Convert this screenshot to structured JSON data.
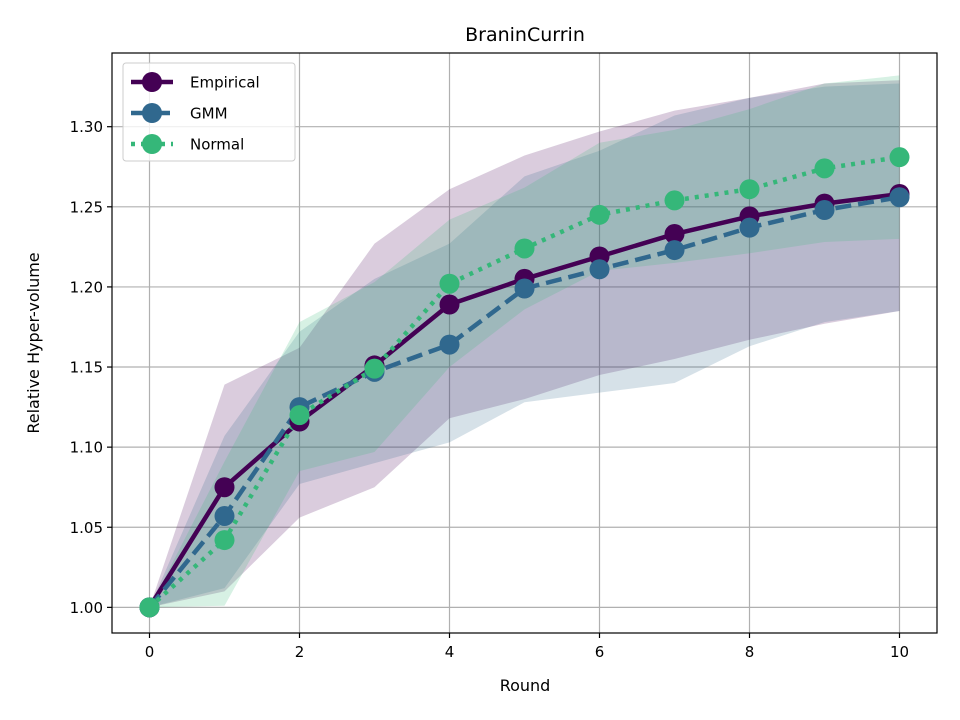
{
  "chart_data": {
    "type": "line",
    "title": "BraninCurrin",
    "xlabel": "Round",
    "ylabel": "Relative Hyper-volume",
    "xlim": [
      -0.5,
      10.5
    ],
    "ylim": [
      0.984,
      1.346
    ],
    "xticks": [
      0,
      2,
      4,
      6,
      8,
      10
    ],
    "yticks": [
      1.0,
      1.05,
      1.1,
      1.15,
      1.2,
      1.25,
      1.3
    ],
    "x": [
      0,
      1,
      2,
      3,
      4,
      5,
      6,
      7,
      8,
      9,
      10
    ],
    "grid": true,
    "legend_position": "top-left",
    "series": [
      {
        "name": "Empirical",
        "color": "#440154",
        "line_style": "solid",
        "values": [
          1.0,
          1.075,
          1.116,
          1.151,
          1.189,
          1.205,
          1.219,
          1.233,
          1.244,
          1.252,
          1.258
        ],
        "band_upper": [
          1.0,
          1.139,
          1.162,
          1.227,
          1.261,
          1.282,
          1.297,
          1.31,
          1.318,
          1.327,
          1.329
        ],
        "band_lower": [
          1.0,
          1.01,
          1.056,
          1.075,
          1.118,
          1.13,
          1.145,
          1.155,
          1.167,
          1.177,
          1.185
        ]
      },
      {
        "name": "GMM",
        "color": "#30688e",
        "line_style": "dashed",
        "values": [
          1.0,
          1.057,
          1.125,
          1.147,
          1.164,
          1.199,
          1.211,
          1.223,
          1.237,
          1.248,
          1.256
        ],
        "band_upper": [
          1.0,
          1.107,
          1.172,
          1.205,
          1.227,
          1.269,
          1.285,
          1.307,
          1.318,
          1.325,
          1.327
        ],
        "band_lower": [
          1.0,
          1.012,
          1.077,
          1.09,
          1.103,
          1.128,
          1.134,
          1.14,
          1.163,
          1.178,
          1.185
        ]
      },
      {
        "name": "Normal",
        "color": "#35b779",
        "line_style": "dotted",
        "values": [
          1.0,
          1.042,
          1.12,
          1.149,
          1.202,
          1.224,
          1.245,
          1.254,
          1.261,
          1.274,
          1.281
        ],
        "band_upper": [
          1.0,
          1.091,
          1.178,
          1.203,
          1.242,
          1.262,
          1.29,
          1.298,
          1.311,
          1.327,
          1.332
        ],
        "band_lower": [
          1.0,
          1.001,
          1.085,
          1.097,
          1.15,
          1.186,
          1.21,
          1.215,
          1.221,
          1.228,
          1.23
        ]
      }
    ]
  }
}
